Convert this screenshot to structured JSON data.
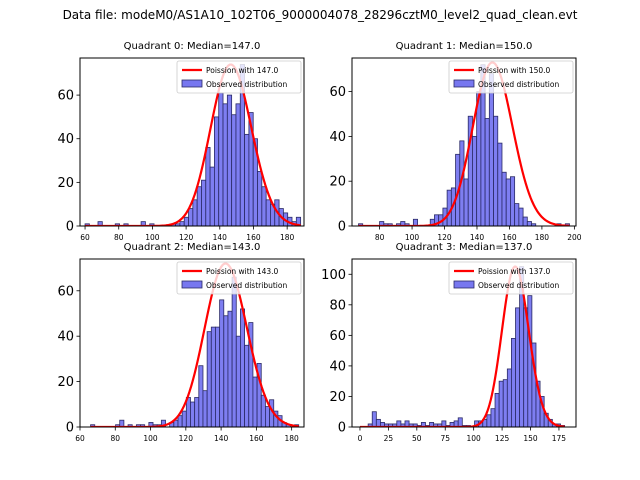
{
  "suptitle": "Data file: modeM0/AS1A10_102T06_9000004078_28296cztM0_level2_quad_clean.evt",
  "colors": {
    "bar_fill": "#7777f0",
    "bar_edge": "#2a2a66",
    "poisson_line": "#ff0000"
  },
  "chart_data": [
    {
      "type": "bar",
      "title": "Quadrant 0: Median=147.0",
      "xlim": [
        57,
        190
      ],
      "ylim": [
        0,
        77
      ],
      "xticks": [
        60,
        80,
        100,
        120,
        140,
        160,
        180
      ],
      "yticks": [
        0,
        20,
        40,
        60
      ],
      "legend": [
        "Poission with 147.0",
        "Observed distribution"
      ],
      "legend_position": "top-right",
      "bin_start": 60,
      "bin_width": 2.56,
      "values": [
        1,
        0,
        0,
        2,
        0,
        0,
        0,
        1,
        0,
        1,
        0,
        0,
        0,
        2,
        0,
        1,
        0,
        0,
        0,
        0,
        1,
        1,
        2,
        4,
        8,
        12,
        18,
        21,
        36,
        27,
        50,
        61,
        56,
        60,
        51,
        56,
        74,
        42,
        52,
        40,
        25,
        18,
        12,
        10,
        12,
        8,
        6,
        4,
        2,
        4
      ],
      "poisson_mean": 147.0,
      "poisson_scale": 74
    },
    {
      "type": "bar",
      "title": "Quadrant 1: Median=150.0",
      "xlim": [
        63,
        201
      ],
      "ylim": [
        0,
        75
      ],
      "xticks": [
        80,
        100,
        120,
        140,
        160,
        180,
        200
      ],
      "yticks": [
        0,
        20,
        40,
        60
      ],
      "legend": [
        "Poission with 150.0",
        "Observed distribution"
      ],
      "legend_position": "top-right",
      "bin_start": 67,
      "bin_width": 2.6,
      "values": [
        1,
        0,
        0,
        0,
        0,
        2,
        1,
        1,
        0,
        1,
        2,
        1,
        0,
        3,
        0,
        0,
        0,
        3,
        5,
        5,
        8,
        16,
        17,
        32,
        38,
        21,
        49,
        40,
        60,
        72,
        48,
        68,
        49,
        37,
        24,
        21,
        22,
        10,
        8,
        4,
        2,
        1,
        0,
        0,
        0,
        0,
        0,
        1,
        0,
        1
      ],
      "poisson_mean": 150.0,
      "poisson_scale": 73
    },
    {
      "type": "bar",
      "title": "Quadrant 2: Median=143.0",
      "xlim": [
        60,
        187
      ],
      "ylim": [
        0,
        74
      ],
      "xticks": [
        60,
        80,
        100,
        120,
        140,
        160,
        180
      ],
      "yticks": [
        0,
        20,
        40,
        60
      ],
      "legend": [
        "Poission with 143.0",
        "Observed distribution"
      ],
      "legend_position": "top-right",
      "bin_start": 66,
      "bin_width": 2.36,
      "values": [
        1,
        0,
        0,
        0,
        0,
        0,
        1,
        3,
        0,
        1,
        0,
        1,
        1,
        0,
        2,
        1,
        1,
        3,
        0,
        2,
        3,
        5,
        7,
        13,
        11,
        13,
        27,
        16,
        42,
        44,
        44,
        56,
        49,
        51,
        66,
        40,
        52,
        36,
        46,
        22,
        28,
        14,
        9,
        12,
        7,
        5,
        2,
        1,
        0,
        1
      ],
      "poisson_mean": 143.0,
      "poisson_scale": 72
    },
    {
      "type": "bar",
      "title": "Quadrant 3: Median=137.0",
      "xlim": [
        -7,
        190
      ],
      "ylim": [
        0,
        110
      ],
      "xticks": [
        0,
        25,
        50,
        75,
        100,
        125,
        150,
        175
      ],
      "yticks": [
        0,
        20,
        40,
        60,
        80,
        100
      ],
      "legend": [
        "Poission with 137.0",
        "Observed distribution"
      ],
      "legend_position": "top-right",
      "bin_start": 0,
      "bin_width": 3.6,
      "values": [
        0,
        0,
        2,
        10,
        5,
        3,
        2,
        2,
        2,
        4,
        2,
        4,
        2,
        2,
        1,
        3,
        1,
        3,
        2,
        2,
        4,
        1,
        3,
        4,
        6,
        1,
        1,
        0,
        4,
        4,
        5,
        8,
        12,
        22,
        30,
        31,
        38,
        58,
        78,
        105,
        78,
        86,
        55,
        30,
        20,
        9,
        5,
        2,
        2,
        1
      ],
      "poisson_mean": 137.0,
      "poisson_scale": 105
    }
  ]
}
